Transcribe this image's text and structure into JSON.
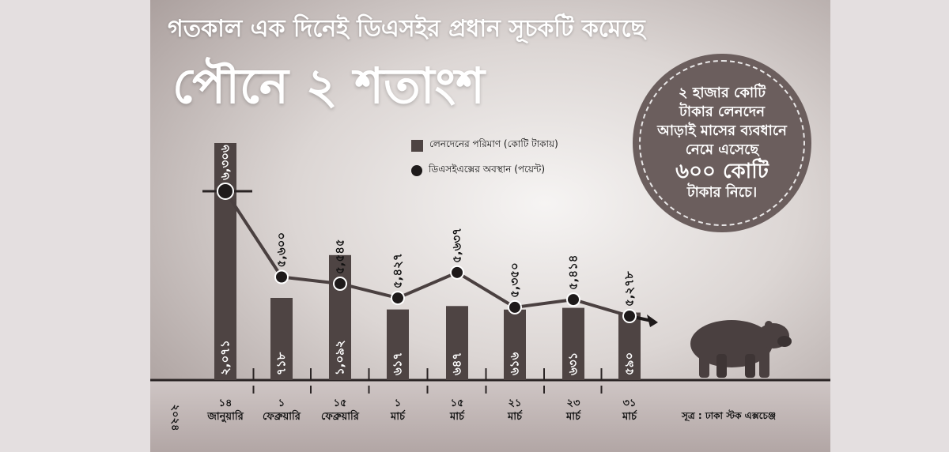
{
  "headline": {
    "top": "গতকাল এক দিনেই ডিএসইর প্রধান সূচকটি কমেছে",
    "main": "পৌনে ২ শতাংশ"
  },
  "callout": {
    "lines": [
      "২ হাজার কোটি",
      "টাকার লেনদেন",
      "আড়াই মাসের ব্যবধানে",
      "নেমে এসেছে",
      "৬০০ কোটি",
      "টাকার নিচে।"
    ]
  },
  "legend": {
    "bars": "লেনদেনের পরিমাণ (কোটি টাকায়)",
    "points": "ডিএসইএক্সের অবস্থান (পয়েন্ট)"
  },
  "year": "২০২৪",
  "source": "সূত্র : ঢাকা স্টক এক্সচেঞ্জ",
  "colors": {
    "bar": "#4e4443",
    "line": "#4a4040",
    "point": "#1e1a1a",
    "background": "#e4dfe0"
  },
  "chart_data": {
    "type": "bar",
    "categories": [
      [
        "১৪",
        "জানুয়ারি"
      ],
      [
        "১",
        "ফেব্রুয়ারি"
      ],
      [
        "১৫",
        "ফেব্রুয়ারি"
      ],
      [
        "১",
        "মার্চ"
      ],
      [
        "১৫",
        "মার্চ"
      ],
      [
        "২১",
        "মার্চ"
      ],
      [
        "২৩",
        "মার্চ"
      ],
      [
        "৩১",
        "মার্চ"
      ]
    ],
    "series": [
      {
        "name": "লেনদেনের পরিমাণ (কোটি টাকায়)",
        "type": "bar",
        "values": [
          2071,
          718,
          1092,
          617,
          647,
          616,
          631,
          590
        ],
        "labels": [
          "২,০৭১",
          "৭১৮",
          "১,০৯২",
          "৬১৭",
          "৬৪৭",
          "৬১৬",
          "৬৩১",
          "৫৯০"
        ]
      },
      {
        "name": "ডিএসইএক্সের অবস্থান (পয়েন্ট)",
        "type": "line",
        "values": [
          6306,
          5600,
          5545,
          5427,
          5637,
          5350,
          5414,
          5278
        ],
        "labels": [
          "৬,৩০৬",
          "৫,৬০০",
          "৫,৫৪৫",
          "৫,৪২৭",
          "৫,৬৩৭",
          "৫,৩৫০",
          "৫,৪১৪",
          "৫,২৭৮"
        ]
      }
    ],
    "legend": "top",
    "grid": false
  }
}
